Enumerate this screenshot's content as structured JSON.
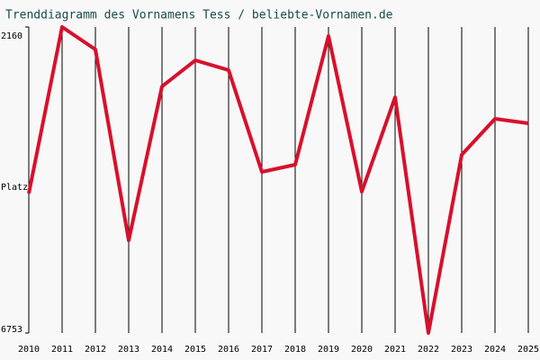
{
  "chart_data": {
    "type": "line",
    "title": "Trenddiagramm des Vornamens Tess / beliebte-Vornamen.de",
    "y_label": "Platz",
    "categories": [
      "2010",
      "2011",
      "2012",
      "2013",
      "2014",
      "2015",
      "2016",
      "2017",
      "2018",
      "2019",
      "2020",
      "2021",
      "2022",
      "2023",
      "2024",
      "2025"
    ],
    "series": [
      {
        "color": "#d8102c",
        "values": [
          4659,
          2160,
          2498,
          5362,
          3052,
          2660,
          2808,
          4335,
          4227,
          2295,
          4632,
          3214,
          6753,
          4078,
          3538,
          3606
        ]
      }
    ],
    "ylim": [
      6753,
      2160
    ],
    "yticks": [
      2160,
      6753
    ],
    "grid": true
  }
}
